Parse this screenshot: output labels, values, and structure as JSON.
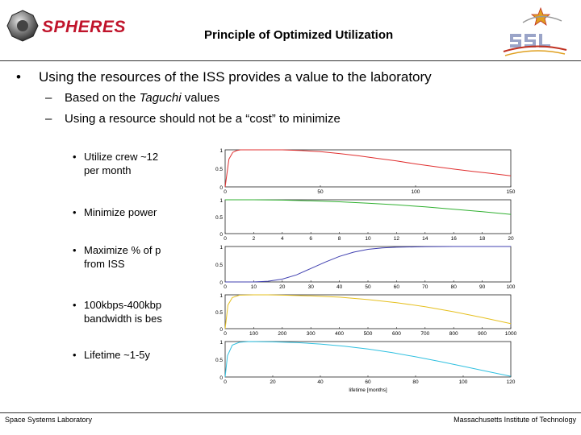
{
  "header": {
    "logo_text": "SPHERES",
    "title": "Principle of Optimized Utilization"
  },
  "bullet": {
    "text": "Using the resources of the ISS provides a value to the laboratory",
    "sub1_pre": "Based on the ",
    "sub1_italic": "Taguchi",
    "sub1_post": " values",
    "sub2": "Using a resource should not be a “cost” to minimize"
  },
  "items": [
    {
      "line1": "Utilize crew ~12",
      "line2": "per month"
    },
    {
      "line1": "Minimize power",
      "line2": ""
    },
    {
      "line1": "Maximize % of p",
      "line2": "from ISS"
    },
    {
      "line1": "100kbps-400kbp",
      "line2": "bandwidth is bes"
    },
    {
      "line1": "Lifetime ~1-5y",
      "line2": ""
    }
  ],
  "footer": {
    "left": "Space Systems Laboratory",
    "right": "Massachusetts Institute of Technology"
  },
  "chart_data": [
    {
      "type": "line",
      "color": "#e03030",
      "xlim": [
        0,
        150
      ],
      "ylim": [
        0,
        1
      ],
      "yticks": [
        "1",
        "0.5",
        "0"
      ],
      "xticks": [
        "0",
        "50",
        "100",
        "150"
      ],
      "xlabel": "",
      "x": [
        0,
        2,
        4,
        6,
        8,
        12,
        20,
        30,
        40,
        50,
        60,
        70,
        80,
        90,
        100,
        110,
        120,
        130,
        140,
        150
      ],
      "y": [
        0,
        0.75,
        0.93,
        0.98,
        1,
        1,
        1,
        1,
        0.98,
        0.95,
        0.9,
        0.84,
        0.77,
        0.7,
        0.62,
        0.55,
        0.48,
        0.42,
        0.36,
        0.3
      ]
    },
    {
      "type": "line",
      "color": "#30b030",
      "xlim": [
        0,
        20
      ],
      "ylim": [
        0,
        1
      ],
      "yticks": [
        "1",
        "0.5",
        "0"
      ],
      "xticks": [
        "0",
        "2",
        "4",
        "6",
        "8",
        "10",
        "12",
        "14",
        "16",
        "18",
        "20"
      ],
      "xlabel": "",
      "x": [
        0,
        2,
        4,
        6,
        8,
        10,
        12,
        14,
        16,
        18,
        20
      ],
      "y": [
        1,
        1,
        0.99,
        0.97,
        0.94,
        0.9,
        0.85,
        0.79,
        0.72,
        0.65,
        0.57
      ]
    },
    {
      "type": "line",
      "color": "#4040b0",
      "xlim": [
        0,
        100
      ],
      "ylim": [
        0,
        1
      ],
      "yticks": [
        "1",
        "0.5",
        "0"
      ],
      "xticks": [
        "0",
        "10",
        "20",
        "30",
        "40",
        "50",
        "60",
        "70",
        "80",
        "90",
        "100"
      ],
      "xlabel": "",
      "x": [
        0,
        10,
        15,
        20,
        25,
        30,
        35,
        40,
        45,
        50,
        55,
        60,
        70,
        80,
        90,
        100
      ],
      "y": [
        0,
        0,
        0.02,
        0.08,
        0.2,
        0.38,
        0.56,
        0.72,
        0.84,
        0.92,
        0.96,
        0.98,
        0.995,
        1,
        1,
        1
      ]
    },
    {
      "type": "line",
      "color": "#e6c020",
      "xlim": [
        0,
        1000
      ],
      "ylim": [
        0,
        1
      ],
      "yticks": [
        "1",
        "0.5",
        "0"
      ],
      "xticks": [
        "0",
        "100",
        "200",
        "300",
        "400",
        "500",
        "600",
        "700",
        "800",
        "900",
        "1000"
      ],
      "xlabel": "",
      "x": [
        0,
        10,
        25,
        50,
        100,
        150,
        200,
        300,
        400,
        500,
        600,
        700,
        800,
        900,
        1000
      ],
      "y": [
        0,
        0.7,
        0.92,
        0.99,
        1,
        1,
        0.99,
        0.97,
        0.93,
        0.86,
        0.77,
        0.65,
        0.5,
        0.33,
        0.15
      ]
    },
    {
      "type": "line",
      "color": "#30c0e0",
      "xlim": [
        0,
        120
      ],
      "ylim": [
        0,
        1
      ],
      "yticks": [
        "1",
        "0.5",
        "0"
      ],
      "xticks": [
        "0",
        "20",
        "40",
        "60",
        "80",
        "100",
        "120"
      ],
      "xlabel": "lifetime [months]",
      "x": [
        0,
        1,
        3,
        6,
        10,
        20,
        30,
        40,
        50,
        60,
        70,
        80,
        90,
        100,
        110,
        120
      ],
      "y": [
        0,
        0.6,
        0.9,
        0.98,
        1,
        0.99,
        0.97,
        0.93,
        0.87,
        0.79,
        0.69,
        0.57,
        0.44,
        0.3,
        0.16,
        0.02
      ]
    }
  ]
}
